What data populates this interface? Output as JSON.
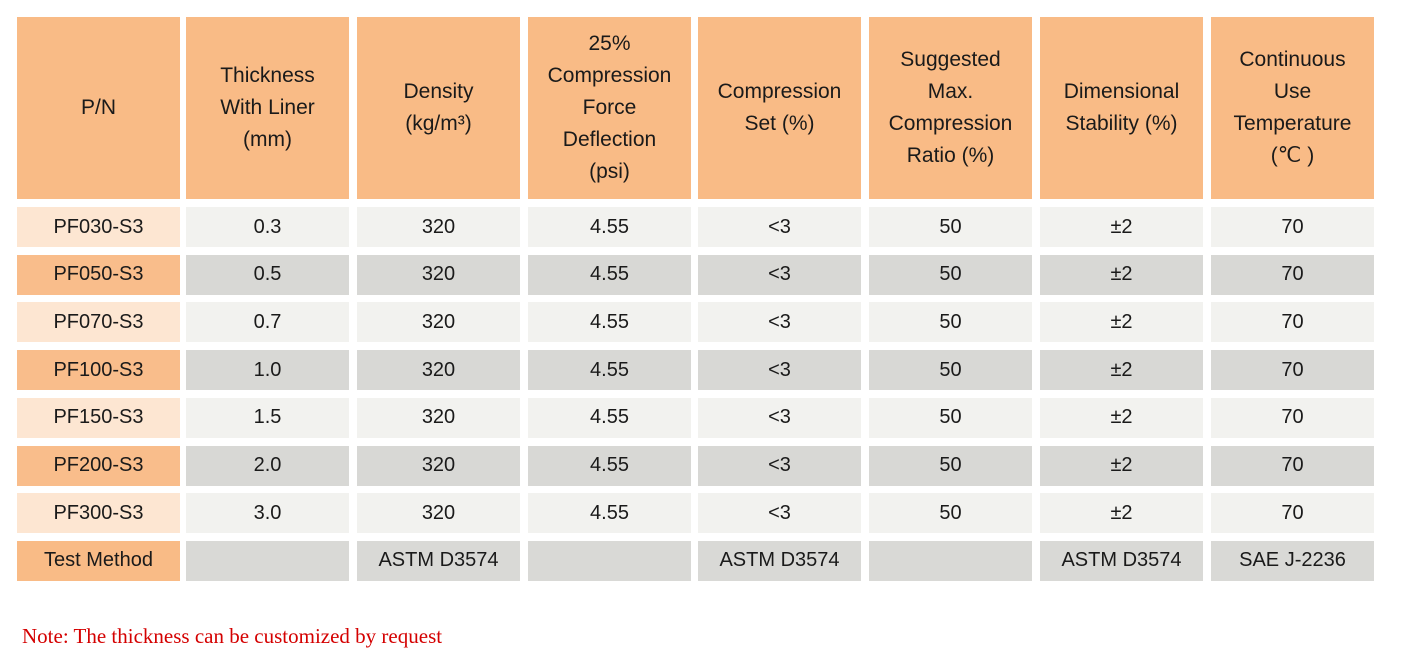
{
  "table": {
    "header": [
      "P/N",
      "Thickness\nWith Liner\n(mm)",
      "Density\n(kg/m³)",
      "25%\nCompression\nForce\nDeflection\n(psi)",
      "Compression\nSet (%)",
      "Suggested\nMax.\nCompression\nRatio (%)",
      "Dimensional\nStability (%)",
      "Continuous\nUse\nTemperature\n(℃ )"
    ],
    "rows": [
      [
        "PF030-S3",
        "0.3",
        "320",
        "4.55",
        "<3",
        "50",
        "±2",
        "70"
      ],
      [
        "PF050-S3",
        "0.5",
        "320",
        "4.55",
        "<3",
        "50",
        "±2",
        "70"
      ],
      [
        "PF070-S3",
        "0.7",
        "320",
        "4.55",
        "<3",
        "50",
        "±2",
        "70"
      ],
      [
        "PF100-S3",
        "1.0",
        "320",
        "4.55",
        "<3",
        "50",
        "±2",
        "70"
      ],
      [
        "PF150-S3",
        "1.5",
        "320",
        "4.55",
        "<3",
        "50",
        "±2",
        "70"
      ],
      [
        "PF200-S3",
        "2.0",
        "320",
        "4.55",
        "<3",
        "50",
        "±2",
        "70"
      ],
      [
        "PF300-S3",
        "3.0",
        "320",
        "4.55",
        "<3",
        "50",
        "±2",
        "70"
      ],
      [
        "Test Method",
        null,
        "ASTM D3574",
        null,
        "ASTM D3574",
        null,
        "ASTM D3574",
        "SAE J-2236"
      ]
    ]
  },
  "note": "Note: The thickness can be customized by request"
}
